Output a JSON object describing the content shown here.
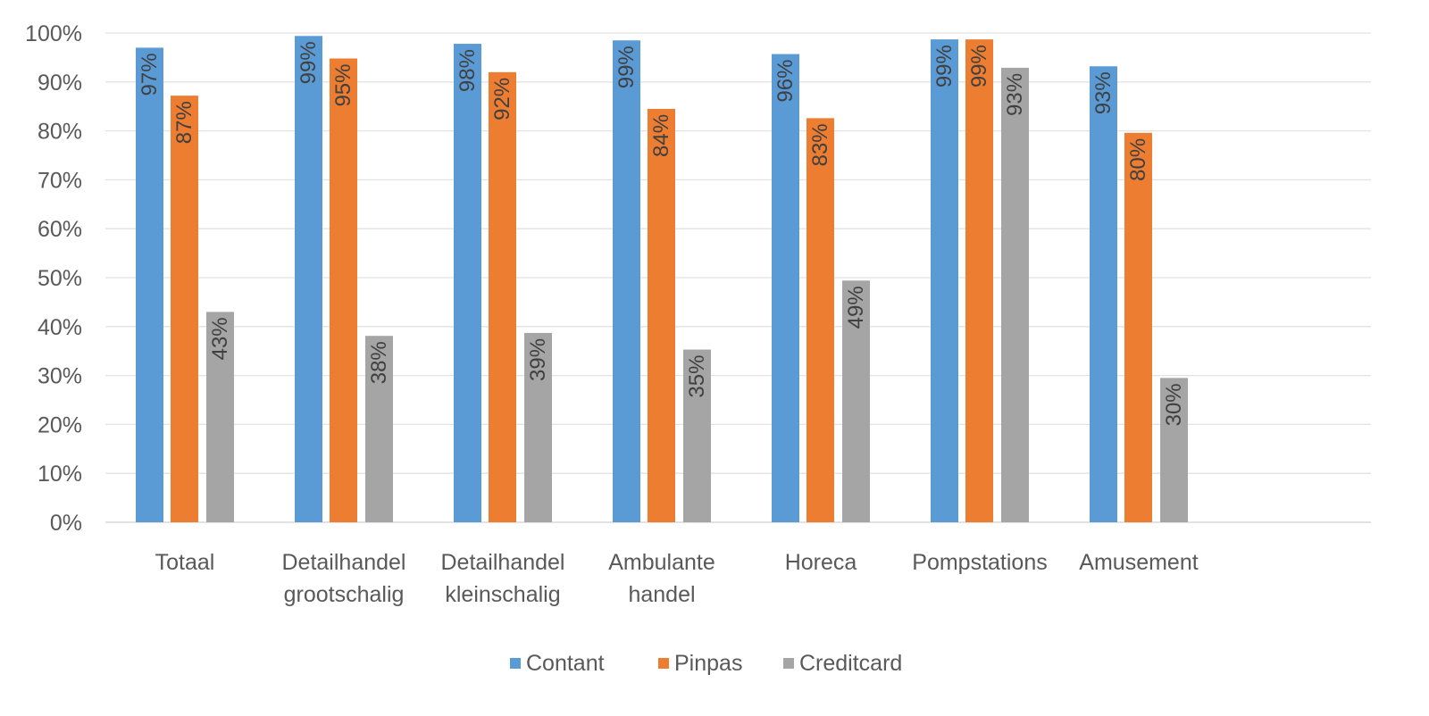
{
  "chart_data": {
    "type": "bar",
    "title": "",
    "xlabel": "",
    "ylabel": "",
    "ylim": [
      0,
      100
    ],
    "y_ticks": [
      "0%",
      "10%",
      "20%",
      "30%",
      "40%",
      "50%",
      "60%",
      "70%",
      "80%",
      "90%",
      "100%"
    ],
    "grid": true,
    "legend_position": "bottom",
    "categories": [
      [
        "Totaal"
      ],
      [
        "Detailhandel",
        "grootschalig"
      ],
      [
        "Detailhandel",
        "kleinschalig"
      ],
      [
        "Ambulante",
        "handel"
      ],
      [
        "Horeca"
      ],
      [
        "Pompstations"
      ],
      [
        "Amusement"
      ]
    ],
    "series": [
      {
        "name": "Contant",
        "color": "#5b9bd5",
        "values": [
          97,
          99.4,
          97.8,
          98.5,
          95.7,
          98.7,
          93.2
        ],
        "labels": [
          "97%",
          "99%",
          "98%",
          "99%",
          "96%",
          "99%",
          "93%"
        ]
      },
      {
        "name": "Pinpas",
        "color": "#ed7d31",
        "values": [
          87.2,
          94.8,
          92,
          84.5,
          82.6,
          98.7,
          79.6
        ],
        "labels": [
          "87%",
          "95%",
          "92%",
          "84%",
          "83%",
          "99%",
          "80%"
        ]
      },
      {
        "name": "Creditcard",
        "color": "#a5a5a5",
        "values": [
          43,
          38.1,
          38.7,
          35.3,
          49.4,
          92.9,
          29.5
        ],
        "labels": [
          "43%",
          "38%",
          "39%",
          "35%",
          "49%",
          "93%",
          "30%"
        ]
      }
    ]
  }
}
